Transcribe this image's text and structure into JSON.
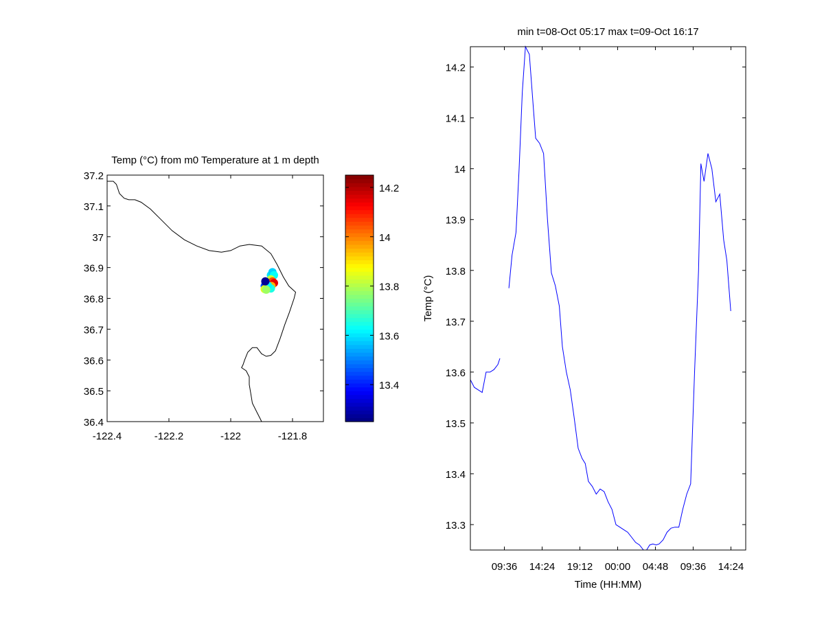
{
  "chart_data": [
    {
      "type": "scatter",
      "title": "Temp (°C) from m0 Temperature at 1 m depth",
      "xlabel": "",
      "ylabel": "",
      "xlim": [
        -122.4,
        -121.7
      ],
      "ylim": [
        36.4,
        37.2
      ],
      "xticks": [
        -122.4,
        -122.2,
        -122,
        -121.8
      ],
      "xtick_labels": [
        "-122.4",
        "-122.2",
        "-122",
        "-121.8"
      ],
      "yticks": [
        36.4,
        36.5,
        36.6,
        36.7,
        36.8,
        36.9,
        37.0,
        37.1,
        37.2
      ],
      "ytick_labels": [
        "36.4",
        "36.5",
        "36.6",
        "36.7",
        "36.8",
        "36.9",
        "37",
        "37.1",
        "37.2"
      ],
      "grid": false,
      "coastline": [
        [
          -122.4,
          37.18
        ],
        [
          -122.38,
          37.18
        ],
        [
          -122.37,
          37.17
        ],
        [
          -122.36,
          37.14
        ],
        [
          -122.345,
          37.125
        ],
        [
          -122.33,
          37.12
        ],
        [
          -122.31,
          37.12
        ],
        [
          -122.29,
          37.112
        ],
        [
          -122.26,
          37.09
        ],
        [
          -122.23,
          37.06
        ],
        [
          -122.19,
          37.02
        ],
        [
          -122.15,
          36.99
        ],
        [
          -122.11,
          36.97
        ],
        [
          -122.07,
          36.955
        ],
        [
          -122.03,
          36.95
        ],
        [
          -122.0,
          36.955
        ],
        [
          -121.97,
          36.97
        ],
        [
          -121.94,
          36.975
        ],
        [
          -121.9,
          36.97
        ],
        [
          -121.87,
          36.945
        ],
        [
          -121.85,
          36.91
        ],
        [
          -121.83,
          36.87
        ],
        [
          -121.812,
          36.84
        ],
        [
          -121.79,
          36.82
        ],
        [
          -121.795,
          36.8
        ],
        [
          -121.81,
          36.755
        ],
        [
          -121.825,
          36.715
        ],
        [
          -121.84,
          36.67
        ],
        [
          -121.855,
          36.63
        ],
        [
          -121.87,
          36.615
        ],
        [
          -121.885,
          36.612
        ],
        [
          -121.9,
          36.62
        ],
        [
          -121.915,
          36.64
        ],
        [
          -121.93,
          36.64
        ],
        [
          -121.945,
          36.625
        ],
        [
          -121.955,
          36.6
        ],
        [
          -121.96,
          36.585
        ],
        [
          -121.965,
          36.575
        ],
        [
          -121.95,
          36.565
        ],
        [
          -121.94,
          36.545
        ],
        [
          -121.94,
          36.52
        ],
        [
          -121.935,
          36.49
        ],
        [
          -121.93,
          36.46
        ],
        [
          -121.915,
          36.43
        ],
        [
          -121.905,
          36.41
        ],
        [
          -121.9,
          36.4
        ]
      ],
      "points": [
        {
          "lon": -121.88,
          "lat": 36.845,
          "temp": 13.55
        },
        {
          "lon": -121.865,
          "lat": 36.85,
          "temp": 13.62
        },
        {
          "lon": -121.87,
          "lat": 36.875,
          "temp": 13.6
        },
        {
          "lon": -121.865,
          "lat": 36.885,
          "temp": 13.58
        },
        {
          "lon": -121.86,
          "lat": 36.875,
          "temp": 13.63
        },
        {
          "lon": -121.87,
          "lat": 36.862,
          "temp": 13.82
        },
        {
          "lon": -121.865,
          "lat": 36.855,
          "temp": 14.05
        },
        {
          "lon": -121.86,
          "lat": 36.85,
          "temp": 14.15
        },
        {
          "lon": -121.868,
          "lat": 36.84,
          "temp": 13.95
        },
        {
          "lon": -121.875,
          "lat": 36.835,
          "temp": 13.7
        },
        {
          "lon": -121.87,
          "lat": 36.832,
          "temp": 13.65
        },
        {
          "lon": -121.89,
          "lat": 36.84,
          "temp": 13.45
        },
        {
          "lon": -121.885,
          "lat": 36.848,
          "temp": 13.3
        },
        {
          "lon": -121.88,
          "lat": 36.842,
          "temp": 13.62
        },
        {
          "lon": -121.89,
          "lat": 36.83,
          "temp": 13.85
        },
        {
          "lon": -121.885,
          "lat": 36.828,
          "temp": 13.78
        },
        {
          "lon": -121.888,
          "lat": 36.855,
          "temp": 13.27
        }
      ],
      "colorbar": {
        "range": [
          13.25,
          14.25
        ],
        "ticks": [
          13.4,
          13.6,
          13.8,
          14.0,
          14.2
        ],
        "tick_labels": [
          "13.4",
          "13.6",
          "13.8",
          "14",
          "14.2"
        ],
        "colormap": "jet"
      }
    },
    {
      "type": "line",
      "title": "min t=08-Oct 05:17 max t=09-Oct 16:17",
      "xlabel": "Time (HH:MM)",
      "ylabel": "Temp (°C)",
      "x_unit": "hours from 08-Oct 05:17",
      "xlim": [
        0,
        35
      ],
      "ylim": [
        13.25,
        14.24
      ],
      "xticks": [
        4.32,
        9.12,
        13.92,
        18.72,
        23.52,
        28.32,
        33.12
      ],
      "xtick_labels": [
        "09:36",
        "14:24",
        "19:12",
        "00:00",
        "04:48",
        "09:36",
        "14:24"
      ],
      "yticks": [
        13.3,
        13.4,
        13.5,
        13.6,
        13.7,
        13.8,
        13.9,
        14.0,
        14.1,
        14.2
      ],
      "ytick_labels": [
        "13.3",
        "13.4",
        "13.5",
        "13.6",
        "13.7",
        "13.8",
        "13.9",
        "14",
        "14.1",
        "14.2"
      ],
      "grid": false,
      "color": "#0000ff",
      "series": [
        {
          "segments": [
            [
              [
                0,
                13.585
              ],
              [
                0.5,
                13.57
              ],
              [
                1.0,
                13.565
              ],
              [
                1.5,
                13.56
              ],
              [
                2.0,
                13.6
              ],
              [
                2.5,
                13.6
              ],
              [
                3.0,
                13.605
              ],
              [
                3.5,
                13.615
              ],
              [
                3.75,
                13.627
              ]
            ],
            [
              [
                4.9,
                13.765
              ],
              [
                5.3,
                13.83
              ],
              [
                5.8,
                13.875
              ],
              [
                6.2,
                14.0
              ],
              [
                6.6,
                14.15
              ],
              [
                7.0,
                14.24
              ],
              [
                7.5,
                14.225
              ],
              [
                8.0,
                14.12
              ],
              [
                8.3,
                14.06
              ],
              [
                8.8,
                14.05
              ],
              [
                9.3,
                14.03
              ],
              [
                9.8,
                13.9
              ],
              [
                10.3,
                13.795
              ],
              [
                10.8,
                13.77
              ],
              [
                11.3,
                13.73
              ],
              [
                11.7,
                13.65
              ],
              [
                12.2,
                13.6
              ],
              [
                12.7,
                13.565
              ],
              [
                13.2,
                13.51
              ],
              [
                13.7,
                13.45
              ],
              [
                14.2,
                13.43
              ],
              [
                14.6,
                13.42
              ],
              [
                15.0,
                13.385
              ],
              [
                15.5,
                13.375
              ],
              [
                16.0,
                13.36
              ],
              [
                16.5,
                13.37
              ],
              [
                17.0,
                13.365
              ],
              [
                17.5,
                13.345
              ],
              [
                18.0,
                13.33
              ],
              [
                18.5,
                13.3
              ],
              [
                19.0,
                13.295
              ],
              [
                19.5,
                13.29
              ],
              [
                20.0,
                13.285
              ],
              [
                20.5,
                13.275
              ],
              [
                21.0,
                13.265
              ],
              [
                21.5,
                13.26
              ],
              [
                22.0,
                13.25
              ],
              [
                22.4,
                13.25
              ],
              [
                22.8,
                13.26
              ],
              [
                23.2,
                13.262
              ],
              [
                23.6,
                13.26
              ],
              [
                24.0,
                13.262
              ],
              [
                24.5,
                13.27
              ],
              [
                25.0,
                13.285
              ],
              [
                25.5,
                13.293
              ],
              [
                26.0,
                13.295
              ],
              [
                26.5,
                13.295
              ],
              [
                27.0,
                13.33
              ],
              [
                27.5,
                13.36
              ],
              [
                28.0,
                13.38
              ],
              [
                28.5,
                13.6
              ],
              [
                29.0,
                13.8
              ],
              [
                29.3,
                14.01
              ],
              [
                29.7,
                13.975
              ],
              [
                30.2,
                14.03
              ],
              [
                30.7,
                14.0
              ],
              [
                31.2,
                13.935
              ],
              [
                31.7,
                13.95
              ],
              [
                32.2,
                13.86
              ],
              [
                32.6,
                13.82
              ],
              [
                33.1,
                13.72
              ]
            ]
          ]
        }
      ]
    }
  ]
}
